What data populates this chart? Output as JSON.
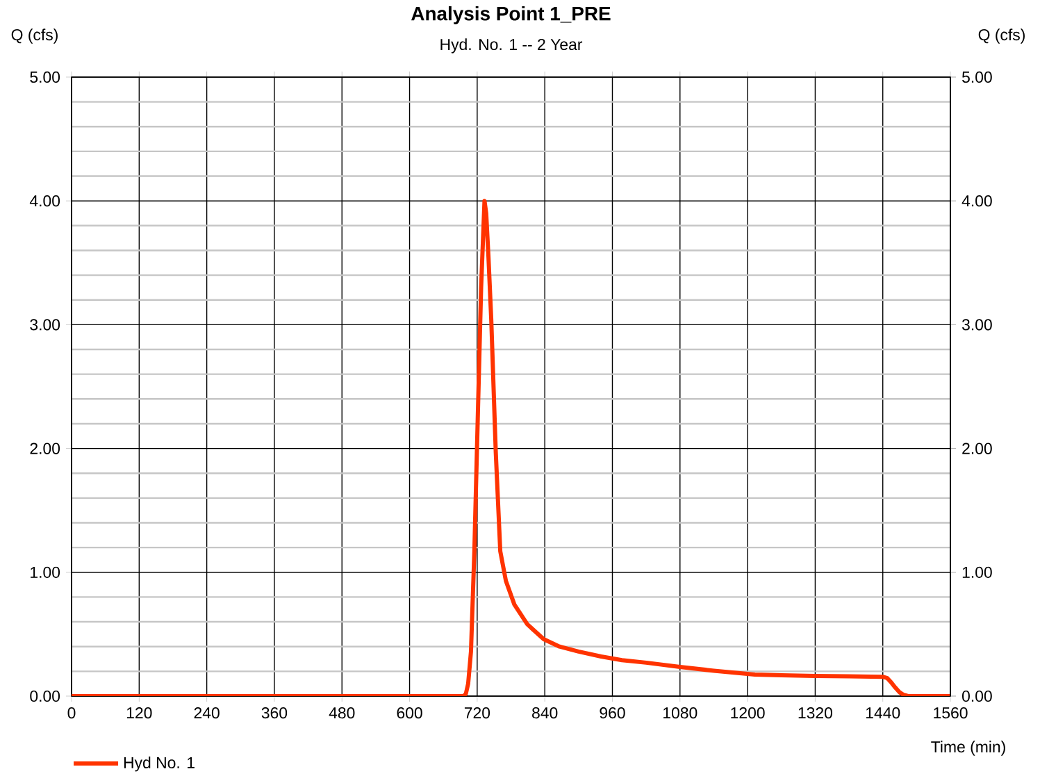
{
  "chart_data": {
    "type": "line",
    "title": "Analysis Point 1_PRE",
    "subtitle": "Hyd. No. 1 -- 2 Year",
    "xlabel": "Time (min)",
    "ylabel": "Q (cfs)",
    "y2label": "Q (cfs)",
    "series": [
      {
        "name": "Hyd No. 1",
        "color": "#ff3300",
        "x": [
          0,
          600,
          696,
          700,
          704,
          709,
          715,
          721,
          727,
          733,
          736,
          740,
          745,
          753,
          761,
          771,
          786,
          809,
          838,
          866,
          900,
          940,
          977,
          1020,
          1080,
          1140,
          1213,
          1260,
          1320,
          1380,
          1440,
          1448,
          1455,
          1462,
          1470,
          1477,
          1485,
          1520,
          1560
        ],
        "values": [
          0,
          0,
          0,
          0.02,
          0.1,
          0.36,
          1.17,
          2.24,
          3.3,
          4.0,
          3.9,
          3.55,
          3.04,
          1.97,
          1.17,
          0.93,
          0.74,
          0.58,
          0.46,
          0.4,
          0.36,
          0.32,
          0.29,
          0.27,
          0.236,
          0.205,
          0.174,
          0.168,
          0.163,
          0.16,
          0.156,
          0.145,
          0.11,
          0.07,
          0.03,
          0.01,
          0,
          0,
          0
        ]
      }
    ],
    "xlim": [
      0,
      1560
    ],
    "xticks": [
      0,
      120,
      240,
      360,
      480,
      600,
      720,
      840,
      960,
      1080,
      1200,
      1320,
      1440,
      1560
    ],
    "ylim": [
      0,
      5
    ],
    "yticks": [
      {
        "value": 0,
        "label": "0.00"
      },
      {
        "value": 1,
        "label": "1.00"
      },
      {
        "value": 2,
        "label": "2.00"
      },
      {
        "value": 3,
        "label": "3.00"
      },
      {
        "value": 4,
        "label": "4.00"
      },
      {
        "value": 5,
        "label": "5.00"
      }
    ],
    "y2lim": [
      0,
      5
    ],
    "y2ticks": [
      {
        "value": 0,
        "label": "0.00"
      },
      {
        "value": 1,
        "label": "1.00"
      },
      {
        "value": 2,
        "label": "2.00"
      },
      {
        "value": 3,
        "label": "3.00"
      },
      {
        "value": 4,
        "label": "4.00"
      },
      {
        "value": 5,
        "label": "5.00"
      }
    ],
    "grid": true,
    "legend": "bottom left",
    "marker": "none",
    "line_style": "solid"
  }
}
